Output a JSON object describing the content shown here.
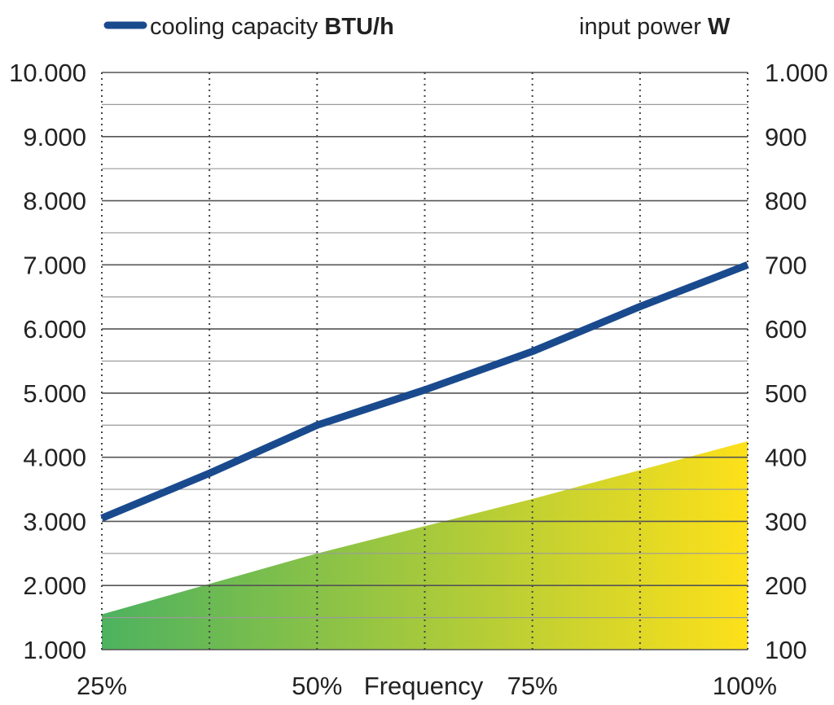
{
  "chart_data": {
    "type": "line",
    "x": [
      "25%",
      "50%",
      "75%",
      "100%"
    ],
    "xlabel": "Frequency",
    "grid": true,
    "legend_position": "top",
    "y_left": {
      "ylim": [
        1000,
        10000
      ],
      "ticks": [
        "1.000",
        "2.000",
        "3.000",
        "4.000",
        "5.000",
        "6.000",
        "7.000",
        "8.000",
        "9.000",
        "10.000"
      ]
    },
    "y_right": {
      "ylim": [
        100,
        1000
      ],
      "ticks": [
        "100",
        "200",
        "300",
        "400",
        "500",
        "600",
        "700",
        "800",
        "900",
        "1.000"
      ]
    },
    "series": [
      {
        "name": "cooling capacity",
        "unit": "BTU/h",
        "axis": "left",
        "style": "line",
        "color": "#1a4a8e",
        "x": [
          25,
          37.5,
          50,
          62.5,
          75,
          87.5,
          100
        ],
        "values": [
          3050,
          3750,
          4500,
          5050,
          5650,
          6350,
          7000
        ]
      },
      {
        "name": "input power",
        "unit": "W",
        "axis": "right",
        "style": "area",
        "color_start": "#4db25f",
        "color_end": "#fde01a",
        "x": [
          25,
          50,
          75,
          100
        ],
        "values": [
          155,
          250,
          335,
          425
        ]
      }
    ]
  }
}
